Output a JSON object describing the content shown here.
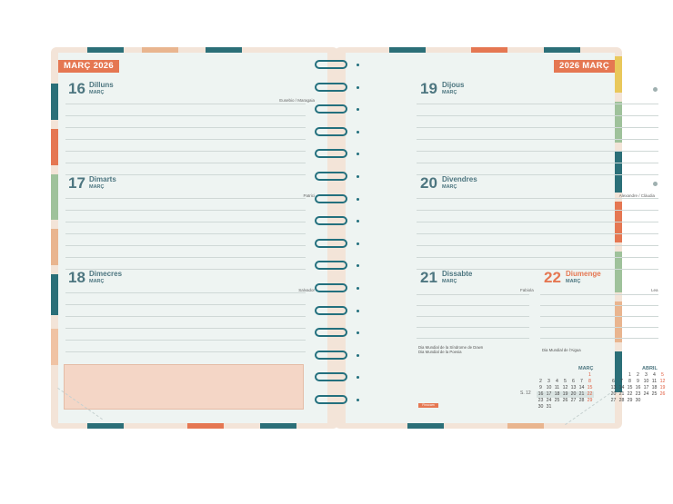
{
  "left_page": {
    "month_tab": "MARÇ 2026",
    "days": [
      {
        "num": "16",
        "name": "Dilluns",
        "month": "MARÇ",
        "saint": "Eusebio / Maragaia"
      },
      {
        "num": "17",
        "name": "Dimarts",
        "month": "MARÇ",
        "saint": "Patrici"
      },
      {
        "num": "18",
        "name": "Dimecres",
        "month": "MARÇ",
        "saint": "Salvador"
      }
    ]
  },
  "right_page": {
    "month_tab": "2026 MARÇ",
    "days": [
      {
        "num": "19",
        "name": "Dijous",
        "month": "MARÇ",
        "saint": ""
      },
      {
        "num": "20",
        "name": "Divendres",
        "month": "MARÇ",
        "saint": "Alexandre / Clàudia"
      },
      {
        "num": "21",
        "name": "Dissabte",
        "month": "MARÇ",
        "saint": "Fabiola"
      },
      {
        "num": "22",
        "name": "Diumenge",
        "month": "MARÇ",
        "saint": "Lea"
      }
    ],
    "notes": {
      "saturday_line1": "Dia Mundial de la Síndrome de Down",
      "saturday_line2": "Dia Mundial de la Poesia",
      "sunday_line1": "Dia Mundial de l'Aigua"
    },
    "brand": "Finocam"
  },
  "mini_calendars": {
    "week_label": "S. 12",
    "march": {
      "title": "MARÇ",
      "rows": [
        [
          "",
          "",
          "",
          "",
          "",
          "",
          "1"
        ],
        [
          "2",
          "3",
          "4",
          "5",
          "6",
          "7",
          "8"
        ],
        [
          "9",
          "10",
          "11",
          "12",
          "13",
          "14",
          "15"
        ],
        [
          "16",
          "17",
          "18",
          "19",
          "20",
          "21",
          "22"
        ],
        [
          "23",
          "24",
          "25",
          "26",
          "27",
          "28",
          "29"
        ],
        [
          "30",
          "31",
          "",
          "",
          "",
          "",
          ""
        ]
      ]
    },
    "april": {
      "title": "ABRIL",
      "rows": [
        [
          "",
          "",
          "1",
          "2",
          "3",
          "4",
          "5"
        ],
        [
          "6",
          "7",
          "8",
          "9",
          "10",
          "11",
          "12"
        ],
        [
          "13",
          "14",
          "15",
          "16",
          "17",
          "18",
          "19"
        ],
        [
          "20",
          "21",
          "22",
          "23",
          "24",
          "25",
          "26"
        ],
        [
          "27",
          "28",
          "29",
          "30",
          "",
          "",
          ""
        ]
      ]
    }
  },
  "colors": {
    "accent": "#e57752",
    "text_teal": "#4d7680",
    "ring": "#23707e",
    "page": "#eef4f2",
    "cover": "#f3e4d8"
  }
}
